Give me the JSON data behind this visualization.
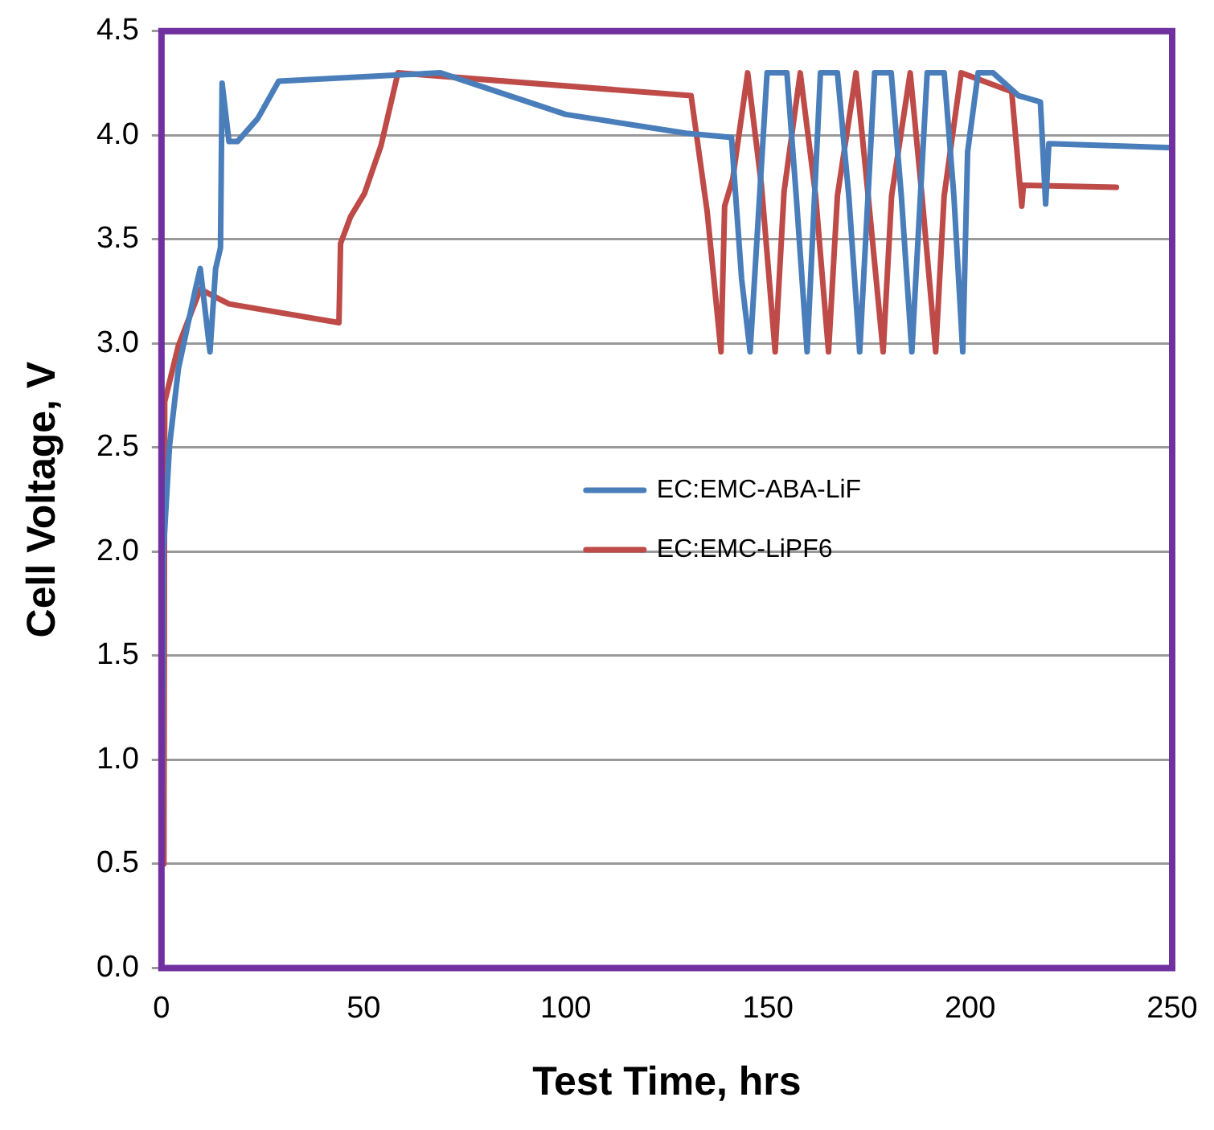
{
  "chart_data": {
    "type": "line",
    "xlabel": "Test Time, hrs",
    "ylabel": "Cell Voltage, V",
    "xlim": [
      0,
      250
    ],
    "xticks": [
      0,
      50,
      100,
      150,
      200,
      250
    ],
    "ylim": [
      0,
      4.5
    ],
    "yticks": [
      {
        "value": 0,
        "label": "0.0"
      },
      {
        "value": 0.5,
        "label": "0.5"
      },
      {
        "value": 1,
        "label": "1.0"
      },
      {
        "value": 1.5,
        "label": "1.5"
      },
      {
        "value": 2,
        "label": "2.0"
      },
      {
        "value": 2.5,
        "label": "2.5"
      },
      {
        "value": 3,
        "label": "3.0"
      },
      {
        "value": 3.5,
        "label": "3.5"
      },
      {
        "value": 4,
        "label": "4.0"
      },
      {
        "value": 4.5,
        "label": "4.5"
      }
    ],
    "grid": "y",
    "legend": "center",
    "marker": "none",
    "line_style": "solid",
    "series": [
      {
        "name": "EC:EMC-ABA-LiF",
        "color": "#4a7ebb",
        "x": [
          0.1,
          0.5,
          2,
          4.2,
          8.4,
          9.6,
          12,
          13.4,
          14.6,
          15,
          16.7,
          18.8,
          23.8,
          29,
          69,
          100,
          129.7,
          141,
          143.5,
          145.6,
          149.8,
          154.7,
          157,
          159.7,
          163,
          167.2,
          170,
          172.7,
          176.4,
          180.5,
          183,
          185.6,
          189.4,
          193.6,
          196,
          198.2,
          199.4,
          202,
          205.7,
          212,
          217.4,
          218.7,
          219.5,
          249.6
        ],
        "values": [
          0.55,
          2.0,
          2.51,
          2.88,
          3.26,
          3.36,
          2.96,
          3.36,
          3.46,
          4.25,
          3.97,
          3.97,
          4.08,
          4.26,
          4.3,
          4.1,
          4.01,
          3.99,
          3.31,
          2.96,
          4.3,
          4.3,
          3.71,
          2.96,
          4.3,
          4.3,
          3.71,
          2.96,
          4.3,
          4.3,
          3.71,
          2.96,
          4.3,
          4.3,
          3.71,
          2.96,
          3.92,
          4.3,
          4.3,
          4.19,
          4.16,
          3.67,
          3.96,
          3.94
        ]
      },
      {
        "name": "EC:EMC-LiPF6",
        "color": "#be4b48",
        "x": [
          0.6,
          0.8,
          4.2,
          9.6,
          16.7,
          43.9,
          44.3,
          46.8,
          50.2,
          54.3,
          58.5,
          131,
          135,
          138.4,
          139.3,
          141.3,
          145,
          148.4,
          151.8,
          154,
          158,
          161.8,
          165,
          167.2,
          171.8,
          174.8,
          178.5,
          180.6,
          185.2,
          188.1,
          191.5,
          193.6,
          197.8,
          210.3,
          212.8,
          213.2,
          236.2
        ],
        "values": [
          0.5,
          2.72,
          2.99,
          3.26,
          3.19,
          3.1,
          3.48,
          3.61,
          3.72,
          3.95,
          4.3,
          4.19,
          3.63,
          2.96,
          3.66,
          3.79,
          4.3,
          3.76,
          2.96,
          3.73,
          4.3,
          3.71,
          2.96,
          3.71,
          4.3,
          3.71,
          2.96,
          3.71,
          4.3,
          3.71,
          2.96,
          3.71,
          4.3,
          4.21,
          3.66,
          3.76,
          3.75
        ]
      }
    ]
  }
}
